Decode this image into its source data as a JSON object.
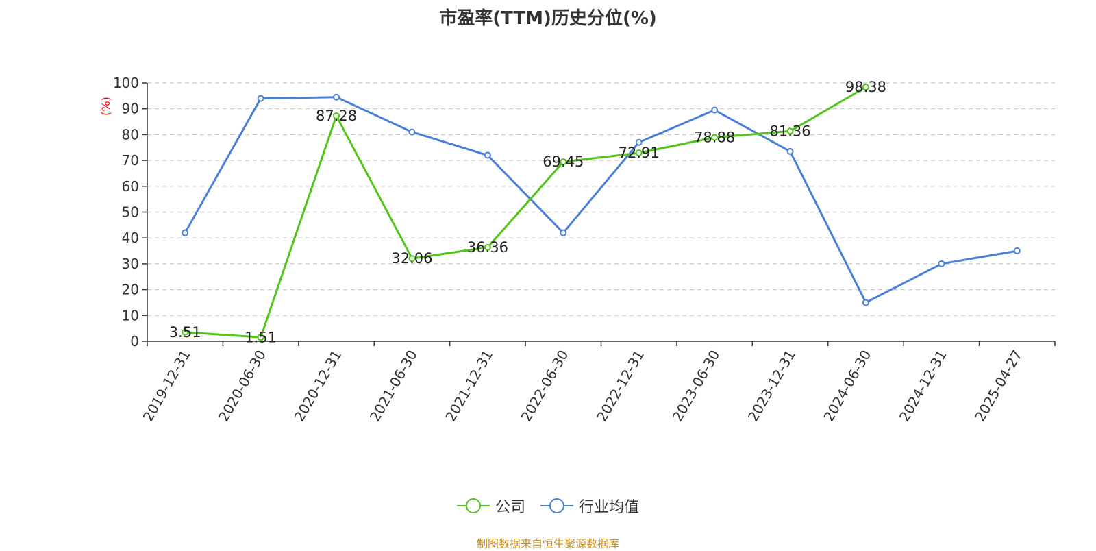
{
  "chart_data": {
    "type": "line",
    "title": "市盈率(TTM)历史分位(%)",
    "ylabel": "(%)",
    "ylabel_color": "#ff0000",
    "ylim": [
      0,
      100
    ],
    "yticks": [
      0,
      10,
      20,
      30,
      40,
      50,
      60,
      70,
      80,
      90,
      100
    ],
    "categories": [
      "2019-12-31",
      "2020-06-30",
      "2020-12-31",
      "2021-06-30",
      "2021-12-31",
      "2022-06-30",
      "2022-12-31",
      "2023-06-30",
      "2023-12-31",
      "2024-06-30",
      "2024-12-31",
      "2025-04-27"
    ],
    "grid": true,
    "legend_position": "bottom",
    "series": [
      {
        "name": "公司",
        "color": "#52c41a",
        "values": [
          3.51,
          1.51,
          87.28,
          32.06,
          36.36,
          69.45,
          72.91,
          78.88,
          81.36,
          98.38,
          null,
          null
        ],
        "data_labels": [
          "3.51",
          "1.51",
          "87.28",
          "32.06",
          "36.36",
          "69.45",
          "72.91",
          "78.88",
          "81.36",
          "98.38",
          null,
          null
        ]
      },
      {
        "name": "行业均值",
        "color": "#4a7fd9",
        "values": [
          42,
          94,
          94.5,
          81,
          72,
          42,
          77,
          89.5,
          73.5,
          15,
          30,
          35
        ]
      }
    ]
  },
  "footer": {
    "source": "制图数据来自恒生聚源数据库"
  }
}
